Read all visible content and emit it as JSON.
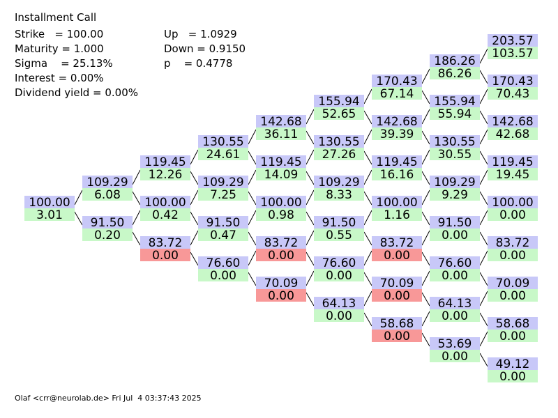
{
  "header": {
    "title": "Installment Call",
    "params_left": [
      "Strike   = 100.00",
      "Maturity = 1.000",
      "Sigma    = 25.13%",
      "Interest = 0.00%",
      "Dividend yield = 0.00%"
    ],
    "params_right": [
      "Up   = 1.0929",
      "Down = 0.9150",
      "p    = 0.4778"
    ]
  },
  "colors": {
    "stock": "#c8c8f8",
    "option": "#c8f8c8",
    "exercised": "#f89898"
  },
  "tree": [
    [
      {
        "stock": "100.00",
        "option": "3.01",
        "color": "#c8f8c8"
      }
    ],
    [
      {
        "stock": "109.29",
        "option": "6.08",
        "color": "#c8f8c8"
      },
      {
        "stock": "91.50",
        "option": "0.20",
        "color": "#c8f8c8"
      }
    ],
    [
      {
        "stock": "119.45",
        "option": "12.26",
        "color": "#c8f8c8"
      },
      {
        "stock": "100.00",
        "option": "0.42",
        "color": "#c8f8c8"
      },
      {
        "stock": "83.72",
        "option": "0.00",
        "color": "#f89898"
      }
    ],
    [
      {
        "stock": "130.55",
        "option": "24.61",
        "color": "#c8f8c8"
      },
      {
        "stock": "109.29",
        "option": "7.25",
        "color": "#c8f8c8"
      },
      {
        "stock": "91.50",
        "option": "0.47",
        "color": "#c8f8c8"
      },
      {
        "stock": "76.60",
        "option": "0.00",
        "color": "#c8f8c8"
      }
    ],
    [
      {
        "stock": "142.68",
        "option": "36.11",
        "color": "#c8f8c8"
      },
      {
        "stock": "119.45",
        "option": "14.09",
        "color": "#c8f8c8"
      },
      {
        "stock": "100.00",
        "option": "0.98",
        "color": "#c8f8c8"
      },
      {
        "stock": "83.72",
        "option": "0.00",
        "color": "#f89898"
      },
      {
        "stock": "70.09",
        "option": "0.00",
        "color": "#f89898"
      }
    ],
    [
      {
        "stock": "155.94",
        "option": "52.65",
        "color": "#c8f8c8"
      },
      {
        "stock": "130.55",
        "option": "27.26",
        "color": "#c8f8c8"
      },
      {
        "stock": "109.29",
        "option": "8.33",
        "color": "#c8f8c8"
      },
      {
        "stock": "91.50",
        "option": "0.55",
        "color": "#c8f8c8"
      },
      {
        "stock": "76.60",
        "option": "0.00",
        "color": "#c8f8c8"
      },
      {
        "stock": "64.13",
        "option": "0.00",
        "color": "#c8f8c8"
      }
    ],
    [
      {
        "stock": "170.43",
        "option": "67.14",
        "color": "#c8f8c8"
      },
      {
        "stock": "142.68",
        "option": "39.39",
        "color": "#c8f8c8"
      },
      {
        "stock": "119.45",
        "option": "16.16",
        "color": "#c8f8c8"
      },
      {
        "stock": "100.00",
        "option": "1.16",
        "color": "#c8f8c8"
      },
      {
        "stock": "83.72",
        "option": "0.00",
        "color": "#f89898"
      },
      {
        "stock": "70.09",
        "option": "0.00",
        "color": "#f89898"
      },
      {
        "stock": "58.68",
        "option": "0.00",
        "color": "#f89898"
      }
    ],
    [
      {
        "stock": "186.26",
        "option": "86.26",
        "color": "#c8f8c8"
      },
      {
        "stock": "155.94",
        "option": "55.94",
        "color": "#c8f8c8"
      },
      {
        "stock": "130.55",
        "option": "30.55",
        "color": "#c8f8c8"
      },
      {
        "stock": "109.29",
        "option": "9.29",
        "color": "#c8f8c8"
      },
      {
        "stock": "91.50",
        "option": "0.00",
        "color": "#c8f8c8"
      },
      {
        "stock": "76.60",
        "option": "0.00",
        "color": "#c8f8c8"
      },
      {
        "stock": "64.13",
        "option": "0.00",
        "color": "#c8f8c8"
      },
      {
        "stock": "53.69",
        "option": "0.00",
        "color": "#c8f8c8"
      }
    ],
    [
      {
        "stock": "203.57",
        "option": "103.57",
        "color": "#c8f8c8"
      },
      {
        "stock": "170.43",
        "option": "70.43",
        "color": "#c8f8c8"
      },
      {
        "stock": "142.68",
        "option": "42.68",
        "color": "#c8f8c8"
      },
      {
        "stock": "119.45",
        "option": "19.45",
        "color": "#c8f8c8"
      },
      {
        "stock": "100.00",
        "option": "0.00",
        "color": "#c8f8c8"
      },
      {
        "stock": "83.72",
        "option": "0.00",
        "color": "#c8f8c8"
      },
      {
        "stock": "70.09",
        "option": "0.00",
        "color": "#c8f8c8"
      },
      {
        "stock": "58.68",
        "option": "0.00",
        "color": "#c8f8c8"
      },
      {
        "stock": "49.12",
        "option": "0.00",
        "color": "#c8f8c8"
      }
    ]
  ],
  "footer": "Olaf <crr@neurolab.de> Fri Jul  4 03:37:43 2025"
}
